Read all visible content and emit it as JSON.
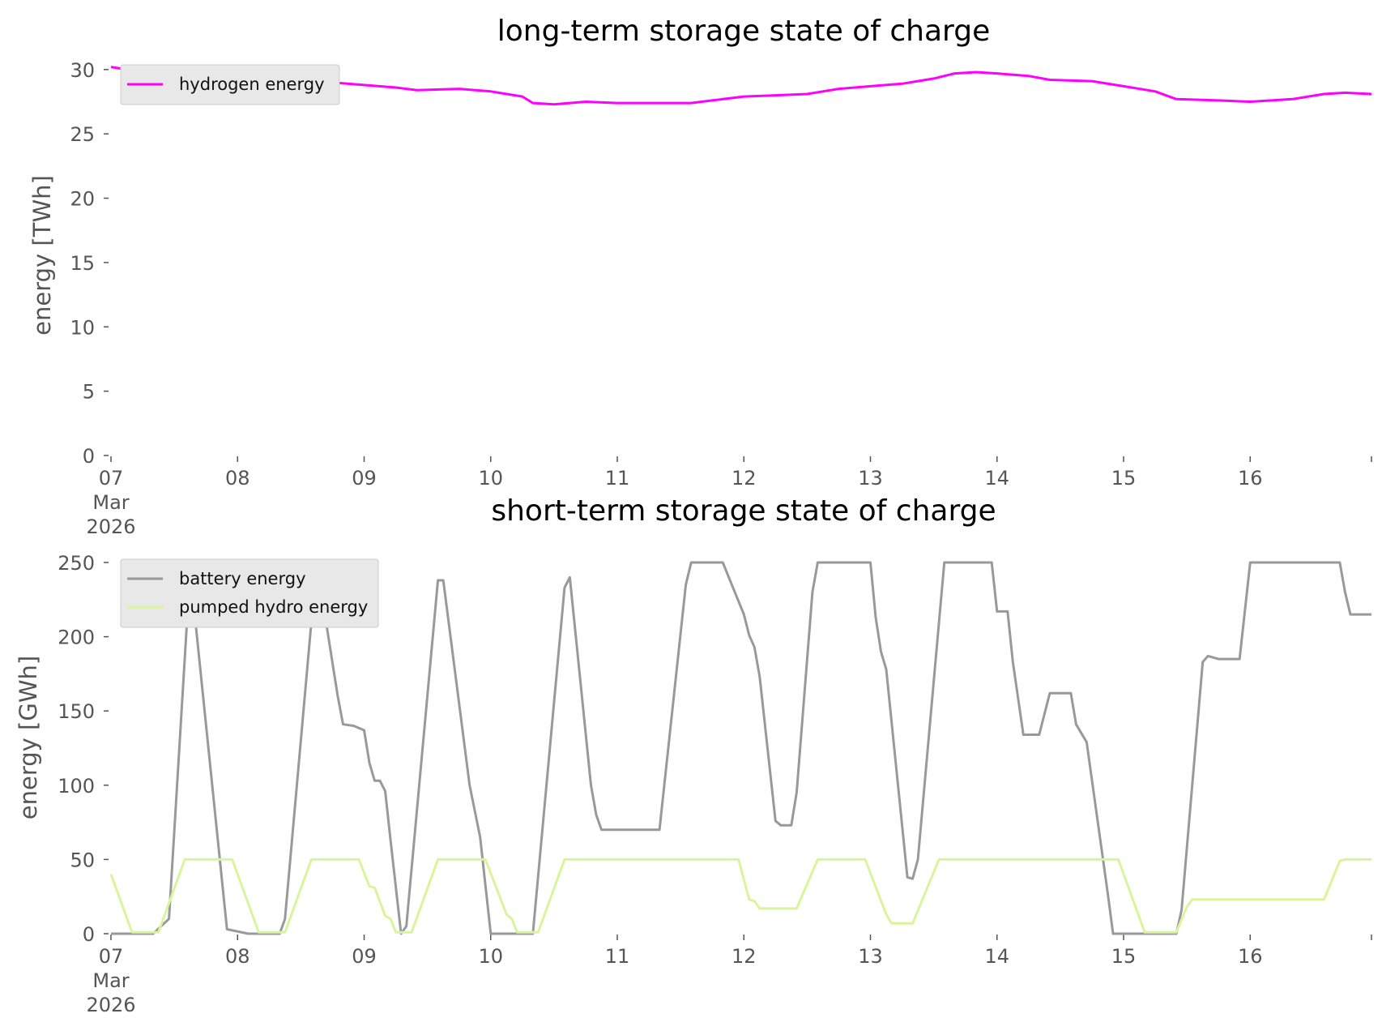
{
  "chart_data": [
    {
      "type": "line",
      "title": "long-term storage state of charge",
      "xlabel": "",
      "ylabel": "energy [TWh]",
      "ylim": [
        0,
        31.5
      ],
      "yticks": [
        0,
        5,
        10,
        15,
        20,
        25,
        30
      ],
      "xlim": [
        "2026-03-07T00:00",
        "2026-03-16T23:00"
      ],
      "xticks": [
        {
          "date": "2026-03-07",
          "lines": [
            "07",
            "Mar",
            "2026"
          ]
        },
        {
          "date": "2026-03-08",
          "lines": [
            "08"
          ]
        },
        {
          "date": "2026-03-09",
          "lines": [
            "09"
          ]
        },
        {
          "date": "2026-03-10",
          "lines": [
            "10"
          ]
        },
        {
          "date": "2026-03-11",
          "lines": [
            "11"
          ]
        },
        {
          "date": "2026-03-12",
          "lines": [
            "12"
          ]
        },
        {
          "date": "2026-03-13",
          "lines": [
            "13"
          ]
        },
        {
          "date": "2026-03-14",
          "lines": [
            "14"
          ]
        },
        {
          "date": "2026-03-15",
          "lines": [
            "15"
          ]
        },
        {
          "date": "2026-03-16",
          "lines": [
            "16"
          ]
        }
      ],
      "legend": "top-left",
      "grid": false,
      "series": [
        {
          "name": "hydrogen energy",
          "color": "#ff00ff",
          "points": [
            [
              "2026-03-07T00:00",
              30.2
            ],
            [
              "2026-03-07T06:00",
              29.8
            ],
            [
              "2026-03-07T12:00",
              29.7
            ],
            [
              "2026-03-07T18:00",
              29.6
            ],
            [
              "2026-03-08T00:00",
              29.3
            ],
            [
              "2026-03-08T06:00",
              28.7
            ],
            [
              "2026-03-08T12:00",
              28.8
            ],
            [
              "2026-03-08T18:00",
              29.0
            ],
            [
              "2026-03-09T00:00",
              28.8
            ],
            [
              "2026-03-09T06:00",
              28.6
            ],
            [
              "2026-03-09T10:00",
              28.4
            ],
            [
              "2026-03-09T18:00",
              28.5
            ],
            [
              "2026-03-10T00:00",
              28.3
            ],
            [
              "2026-03-10T06:00",
              27.9
            ],
            [
              "2026-03-10T08:00",
              27.4
            ],
            [
              "2026-03-10T12:00",
              27.3
            ],
            [
              "2026-03-10T18:00",
              27.5
            ],
            [
              "2026-03-11T00:00",
              27.4
            ],
            [
              "2026-03-11T08:00",
              27.4
            ],
            [
              "2026-03-11T14:00",
              27.4
            ],
            [
              "2026-03-11T18:00",
              27.6
            ],
            [
              "2026-03-12T00:00",
              27.9
            ],
            [
              "2026-03-12T06:00",
              28.0
            ],
            [
              "2026-03-12T12:00",
              28.1
            ],
            [
              "2026-03-12T18:00",
              28.5
            ],
            [
              "2026-03-13T00:00",
              28.7
            ],
            [
              "2026-03-13T06:00",
              28.9
            ],
            [
              "2026-03-13T12:00",
              29.3
            ],
            [
              "2026-03-13T16:00",
              29.7
            ],
            [
              "2026-03-13T20:00",
              29.8
            ],
            [
              "2026-03-14T00:00",
              29.7
            ],
            [
              "2026-03-14T06:00",
              29.5
            ],
            [
              "2026-03-14T10:00",
              29.2
            ],
            [
              "2026-03-14T18:00",
              29.1
            ],
            [
              "2026-03-15T00:00",
              28.7
            ],
            [
              "2026-03-15T06:00",
              28.3
            ],
            [
              "2026-03-15T10:00",
              27.7
            ],
            [
              "2026-03-15T18:00",
              27.6
            ],
            [
              "2026-03-16T00:00",
              27.5
            ],
            [
              "2026-03-16T08:00",
              27.7
            ],
            [
              "2026-03-16T14:00",
              28.1
            ],
            [
              "2026-03-16T18:00",
              28.2
            ],
            [
              "2026-03-16T23:00",
              28.1
            ]
          ]
        }
      ]
    },
    {
      "type": "line",
      "title": "short-term storage state of charge",
      "xlabel": "",
      "ylabel": "energy [GWh]",
      "ylim": [
        0,
        262
      ],
      "yticks": [
        0,
        50,
        100,
        150,
        200,
        250
      ],
      "xlim": [
        "2026-03-07T00:00",
        "2026-03-16T23:00"
      ],
      "xticks": [
        {
          "date": "2026-03-07",
          "lines": [
            "07",
            "Mar",
            "2026"
          ]
        },
        {
          "date": "2026-03-08",
          "lines": [
            "08"
          ]
        },
        {
          "date": "2026-03-09",
          "lines": [
            "09"
          ]
        },
        {
          "date": "2026-03-10",
          "lines": [
            "10"
          ]
        },
        {
          "date": "2026-03-11",
          "lines": [
            "11"
          ]
        },
        {
          "date": "2026-03-12",
          "lines": [
            "12"
          ]
        },
        {
          "date": "2026-03-13",
          "lines": [
            "13"
          ]
        },
        {
          "date": "2026-03-14",
          "lines": [
            "14"
          ]
        },
        {
          "date": "2026-03-15",
          "lines": [
            "15"
          ]
        },
        {
          "date": "2026-03-16",
          "lines": [
            "16"
          ]
        }
      ],
      "legend": "top-left",
      "grid": false,
      "series": [
        {
          "name": "battery energy",
          "color": "#999999",
          "points": [
            [
              "2026-03-07T00:00",
              0
            ],
            [
              "2026-03-07T08:00",
              0
            ],
            [
              "2026-03-07T11:00",
              10
            ],
            [
              "2026-03-07T15:00",
              245
            ],
            [
              "2026-03-07T22:00",
              3
            ],
            [
              "2026-03-08T02:00",
              0
            ],
            [
              "2026-03-08T08:00",
              0
            ],
            [
              "2026-03-08T09:00",
              10
            ],
            [
              "2026-03-08T15:00",
              250
            ],
            [
              "2026-03-08T19:00",
              160
            ],
            [
              "2026-03-08T20:00",
              141
            ],
            [
              "2026-03-08T22:00",
              140
            ],
            [
              "2026-03-09T00:00",
              137
            ],
            [
              "2026-03-09T01:00",
              115
            ],
            [
              "2026-03-09T02:00",
              103
            ],
            [
              "2026-03-09T03:00",
              103
            ],
            [
              "2026-03-09T04:00",
              96
            ],
            [
              "2026-03-09T05:00",
              63
            ],
            [
              "2026-03-09T07:00",
              0
            ],
            [
              "2026-03-09T08:00",
              5
            ],
            [
              "2026-03-09T14:00",
              238
            ],
            [
              "2026-03-09T15:00",
              238
            ],
            [
              "2026-03-09T20:00",
              100
            ],
            [
              "2026-03-09T22:00",
              65
            ],
            [
              "2026-03-10T00:00",
              0
            ],
            [
              "2026-03-10T08:00",
              0
            ],
            [
              "2026-03-10T14:00",
              233
            ],
            [
              "2026-03-10T15:00",
              240
            ],
            [
              "2026-03-10T19:00",
              100
            ],
            [
              "2026-03-10T20:00",
              80
            ],
            [
              "2026-03-10T21:00",
              70
            ],
            [
              "2026-03-11T08:00",
              70
            ],
            [
              "2026-03-11T13:00",
              235
            ],
            [
              "2026-03-11T14:00",
              250
            ],
            [
              "2026-03-11T20:00",
              250
            ],
            [
              "2026-03-12T00:00",
              215
            ],
            [
              "2026-03-12T01:00",
              201
            ],
            [
              "2026-03-12T02:00",
              193
            ],
            [
              "2026-03-12T03:00",
              173
            ],
            [
              "2026-03-12T06:00",
              76
            ],
            [
              "2026-03-12T07:00",
              73
            ],
            [
              "2026-03-12T09:00",
              73
            ],
            [
              "2026-03-12T10:00",
              95
            ],
            [
              "2026-03-12T13:00",
              230
            ],
            [
              "2026-03-12T14:00",
              250
            ],
            [
              "2026-03-13T00:00",
              250
            ],
            [
              "2026-03-13T01:00",
              213
            ],
            [
              "2026-03-13T02:00",
              190
            ],
            [
              "2026-03-13T03:00",
              178
            ],
            [
              "2026-03-13T07:00",
              38
            ],
            [
              "2026-03-13T08:00",
              37
            ],
            [
              "2026-03-13T09:00",
              50
            ],
            [
              "2026-03-13T14:00",
              250
            ],
            [
              "2026-03-13T23:00",
              250
            ],
            [
              "2026-03-14T00:00",
              217
            ],
            [
              "2026-03-14T02:00",
              217
            ],
            [
              "2026-03-14T03:00",
              183
            ],
            [
              "2026-03-14T05:00",
              134
            ],
            [
              "2026-03-14T08:00",
              134
            ],
            [
              "2026-03-14T10:00",
              162
            ],
            [
              "2026-03-14T14:00",
              162
            ],
            [
              "2026-03-14T15:00",
              141
            ],
            [
              "2026-03-14T17:00",
              129
            ],
            [
              "2026-03-14T21:00",
              27
            ],
            [
              "2026-03-14T22:00",
              0
            ],
            [
              "2026-03-15T10:00",
              0
            ],
            [
              "2026-03-15T11:00",
              16
            ],
            [
              "2026-03-15T15:00",
              183
            ],
            [
              "2026-03-15T16:00",
              187
            ],
            [
              "2026-03-15T18:00",
              185
            ],
            [
              "2026-03-15T22:00",
              185
            ],
            [
              "2026-03-16T00:00",
              250
            ],
            [
              "2026-03-16T17:00",
              250
            ],
            [
              "2026-03-16T18:00",
              230
            ],
            [
              "2026-03-16T19:00",
              215
            ],
            [
              "2026-03-16T23:00",
              215
            ]
          ]
        },
        {
          "name": "pumped hydro energy",
          "color": "#d9f59b",
          "points": [
            [
              "2026-03-07T00:00",
              40
            ],
            [
              "2026-03-07T04:00",
              1
            ],
            [
              "2026-03-07T09:00",
              1
            ],
            [
              "2026-03-07T14:00",
              50
            ],
            [
              "2026-03-07T23:00",
              50
            ],
            [
              "2026-03-08T04:00",
              1
            ],
            [
              "2026-03-08T09:00",
              1
            ],
            [
              "2026-03-08T14:00",
              50
            ],
            [
              "2026-03-08T23:00",
              50
            ],
            [
              "2026-03-09T01:00",
              32
            ],
            [
              "2026-03-09T02:00",
              31
            ],
            [
              "2026-03-09T04:00",
              12
            ],
            [
              "2026-03-09T05:00",
              10
            ],
            [
              "2026-03-09T06:00",
              1
            ],
            [
              "2026-03-09T09:00",
              1
            ],
            [
              "2026-03-09T14:00",
              50
            ],
            [
              "2026-03-09T23:00",
              50
            ],
            [
              "2026-03-10T03:00",
              13
            ],
            [
              "2026-03-10T04:00",
              10
            ],
            [
              "2026-03-10T05:00",
              1
            ],
            [
              "2026-03-10T09:00",
              1
            ],
            [
              "2026-03-10T14:00",
              50
            ],
            [
              "2026-03-11T23:00",
              50
            ],
            [
              "2026-03-12T01:00",
              23
            ],
            [
              "2026-03-12T02:00",
              22
            ],
            [
              "2026-03-12T03:00",
              17
            ],
            [
              "2026-03-12T10:00",
              17
            ],
            [
              "2026-03-12T14:00",
              50
            ],
            [
              "2026-03-12T23:00",
              50
            ],
            [
              "2026-03-13T03:00",
              13
            ],
            [
              "2026-03-13T04:00",
              7
            ],
            [
              "2026-03-13T08:00",
              7
            ],
            [
              "2026-03-13T13:00",
              50
            ],
            [
              "2026-03-14T22:00",
              50
            ],
            [
              "2026-03-14T23:00",
              50
            ],
            [
              "2026-03-15T04:00",
              1
            ],
            [
              "2026-03-15T10:00",
              1
            ],
            [
              "2026-03-15T12:00",
              18
            ],
            [
              "2026-03-15T13:00",
              23
            ],
            [
              "2026-03-16T14:00",
              23
            ],
            [
              "2026-03-16T17:00",
              49
            ],
            [
              "2026-03-16T18:00",
              50
            ],
            [
              "2026-03-16T23:00",
              50
            ]
          ]
        }
      ]
    }
  ]
}
